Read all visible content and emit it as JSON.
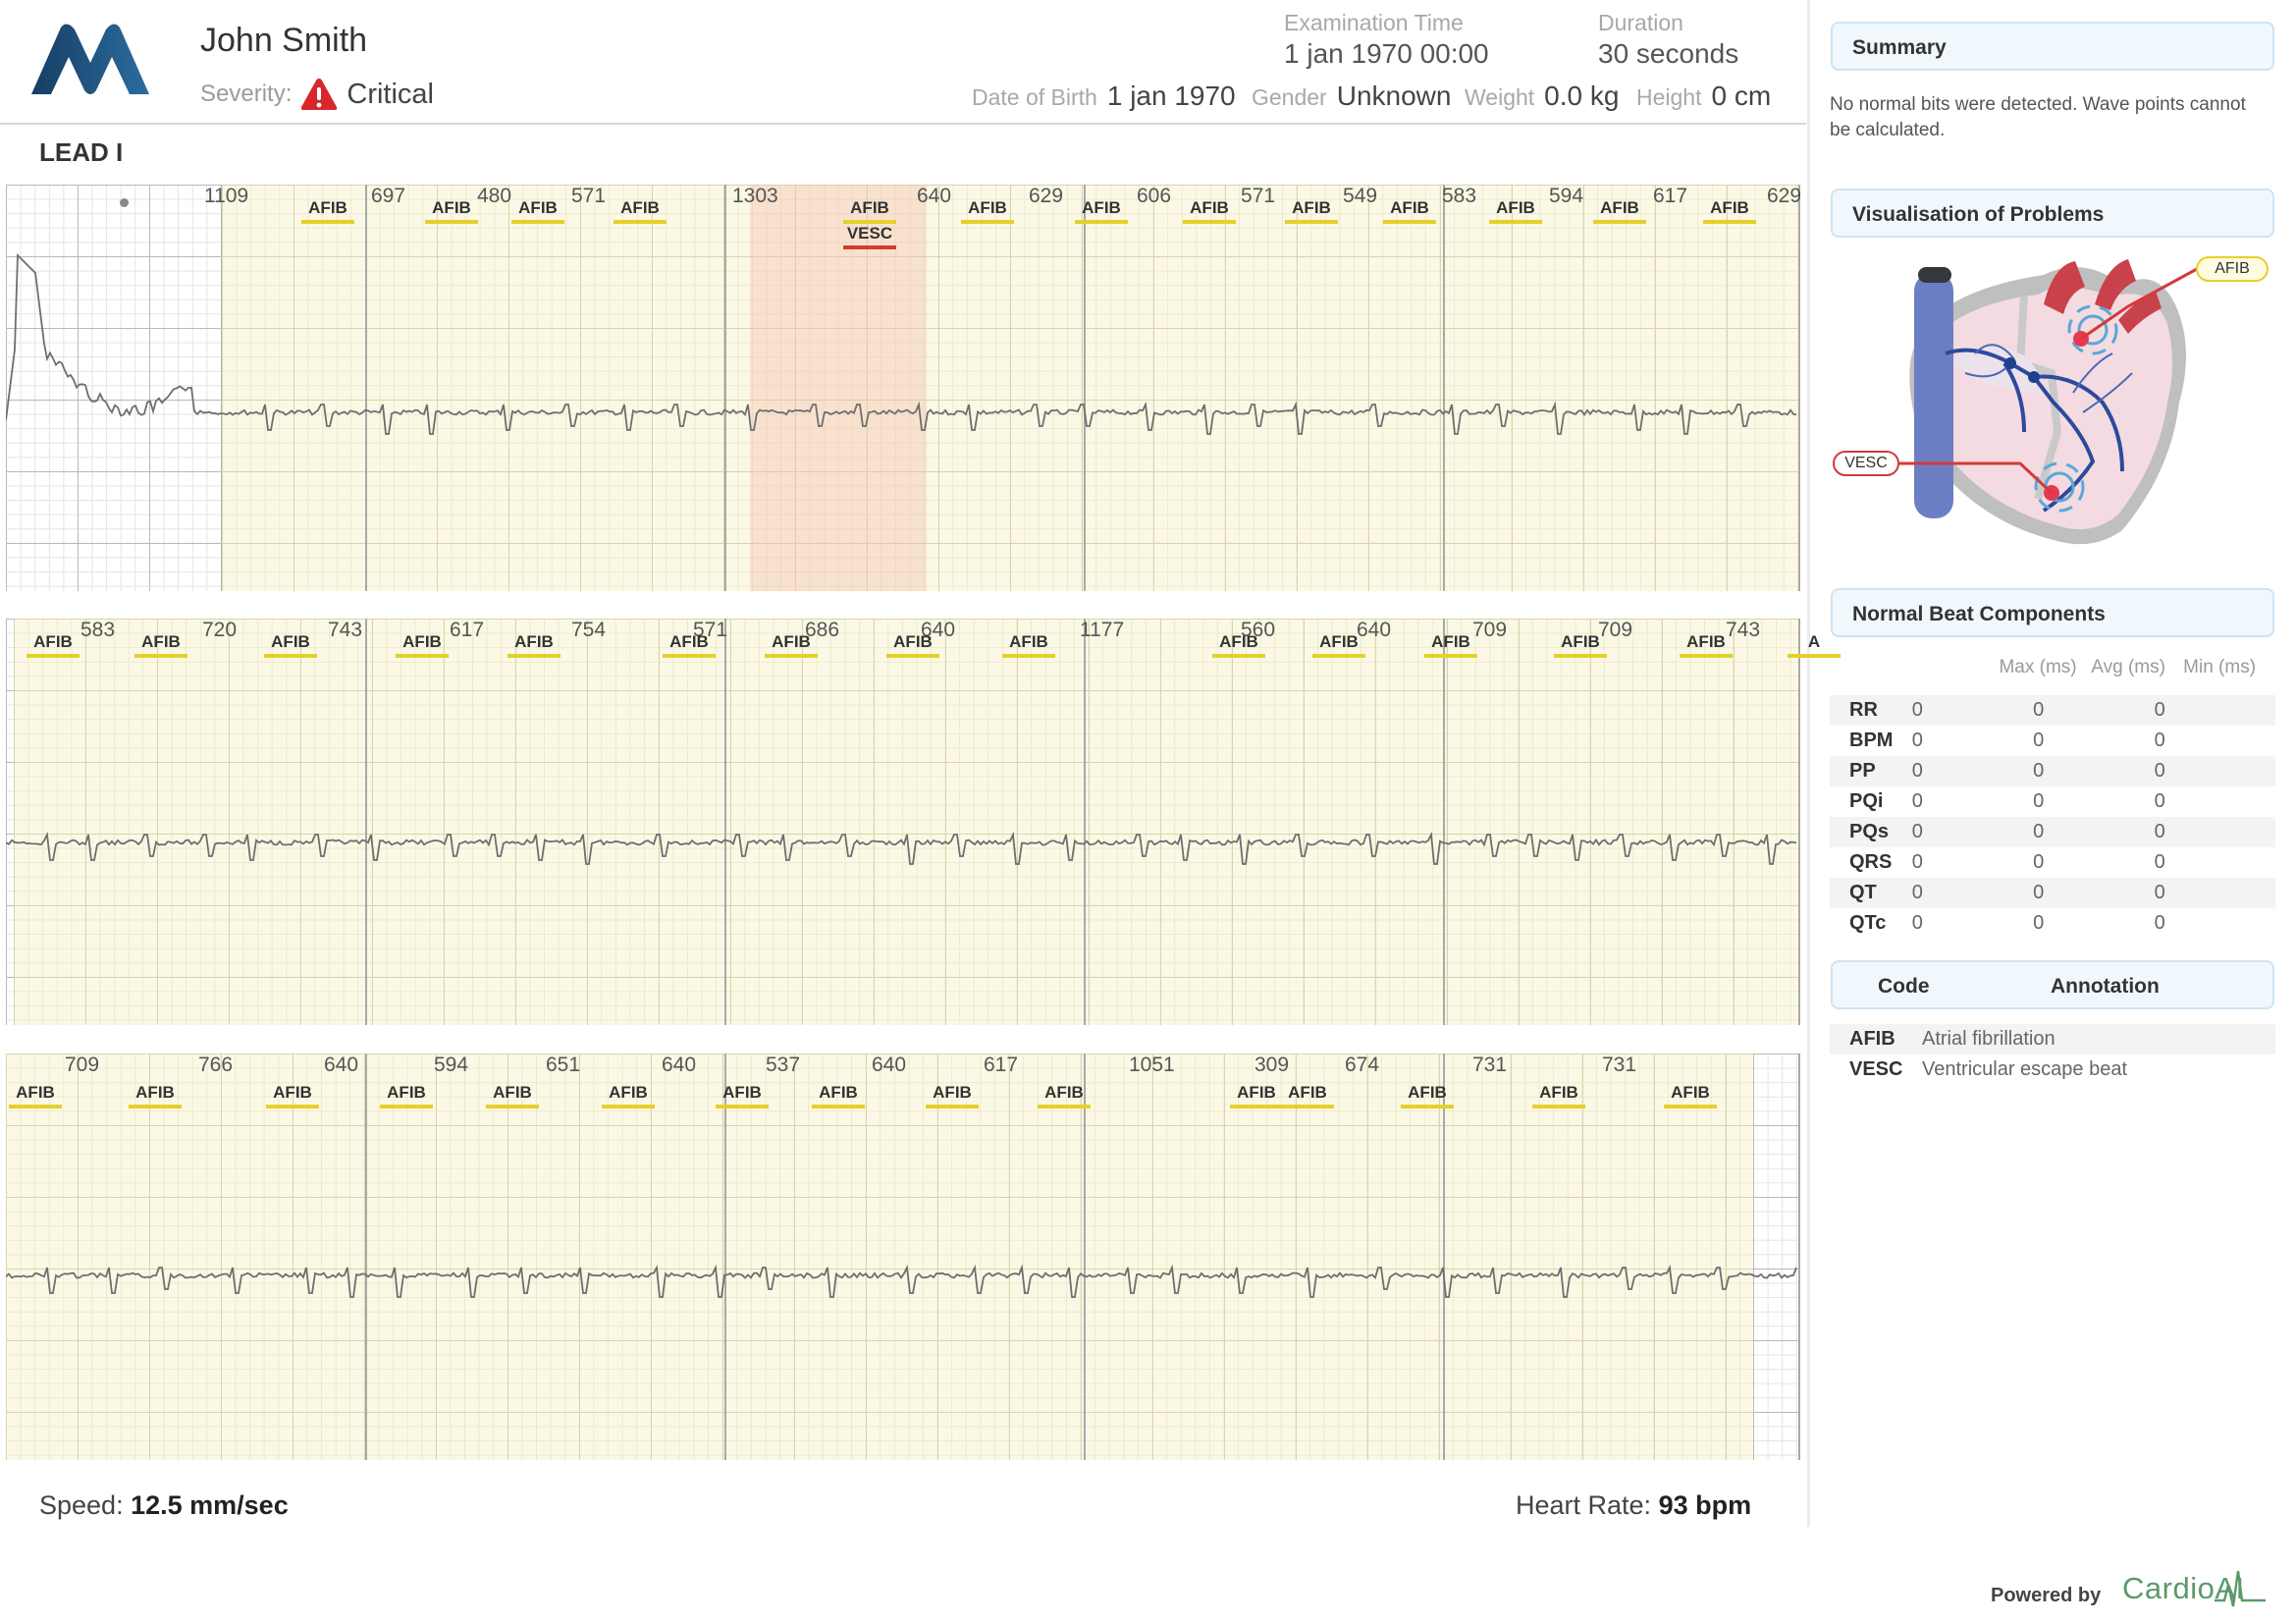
{
  "patient": {
    "name": "John Smith",
    "severity_label": "Severity:",
    "severity_value": "Critical",
    "exam_time_label": "Examination Time",
    "exam_time_value": "1 jan 1970 00:00",
    "duration_label": "Duration",
    "duration_value": "30 seconds",
    "dob_label": "Date of Birth",
    "dob_value": "1 jan 1970",
    "gender_label": "Gender",
    "gender_value": "Unknown",
    "weight_label": "Weight",
    "weight_value": "0.0 kg",
    "height_label": "Height",
    "height_value": "0 cm"
  },
  "ecg": {
    "lead_label": "LEAD I",
    "strips": [
      {
        "rr": [
          "1109",
          "697",
          "480",
          "571",
          "1303",
          "640",
          "629",
          "606",
          "571",
          "549",
          "583",
          "594",
          "617",
          "629"
        ],
        "tags": [
          {
            "text": "AFIB",
            "color": "#e6cf2a"
          },
          {
            "text": "AFIB",
            "color": "#e6cf2a"
          },
          {
            "text": "AFIB",
            "color": "#e6cf2a"
          },
          {
            "text": "AFIB",
            "color": "#e6cf2a"
          },
          {
            "text": "AFIB",
            "color": "#e6cf2a"
          },
          {
            "text": "VESC",
            "color": "#d63b2b"
          },
          {
            "text": "AFIB",
            "color": "#e6cf2a"
          },
          {
            "text": "AFIB",
            "color": "#e6cf2a"
          },
          {
            "text": "AFIB",
            "color": "#e6cf2a"
          },
          {
            "text": "AFIB",
            "color": "#e6cf2a"
          },
          {
            "text": "AFIB",
            "color": "#e6cf2a"
          },
          {
            "text": "AFIB",
            "color": "#e6cf2a"
          },
          {
            "text": "AFIB",
            "color": "#e6cf2a"
          },
          {
            "text": "AFIB",
            "color": "#e6cf2a"
          }
        ]
      },
      {
        "rr": [
          "583",
          "720",
          "743",
          "617",
          "754",
          "571",
          "686",
          "640",
          "1177",
          "560",
          "640",
          "709",
          "709",
          "743"
        ],
        "tags": [
          {
            "text": "AFIB",
            "color": "#e6cf2a"
          },
          {
            "text": "AFIB",
            "color": "#e6cf2a"
          },
          {
            "text": "AFIB",
            "color": "#e6cf2a"
          },
          {
            "text": "AFIB",
            "color": "#e6cf2a"
          },
          {
            "text": "AFIB",
            "color": "#e6cf2a"
          },
          {
            "text": "AFIB",
            "color": "#e6cf2a"
          },
          {
            "text": "AFIB",
            "color": "#e6cf2a"
          },
          {
            "text": "AFIB",
            "color": "#e6cf2a"
          },
          {
            "text": "AFIB",
            "color": "#e6cf2a"
          },
          {
            "text": "AFIB",
            "color": "#e6cf2a"
          },
          {
            "text": "AFIB",
            "color": "#e6cf2a"
          },
          {
            "text": "AFIB",
            "color": "#e6cf2a"
          },
          {
            "text": "AFIB",
            "color": "#e6cf2a"
          },
          {
            "text": "AFIB",
            "color": "#e6cf2a"
          },
          {
            "text": "A",
            "color": "#e6cf2a"
          }
        ]
      },
      {
        "rr": [
          "709",
          "766",
          "640",
          "594",
          "651",
          "640",
          "537",
          "640",
          "617",
          "1051",
          "309",
          "674",
          "731",
          "731"
        ],
        "tags": [
          {
            "text": "AFIB",
            "color": "#e6cf2a"
          },
          {
            "text": "AFIB",
            "color": "#e6cf2a"
          },
          {
            "text": "AFIB",
            "color": "#e6cf2a"
          },
          {
            "text": "AFIB",
            "color": "#e6cf2a"
          },
          {
            "text": "AFIB",
            "color": "#e6cf2a"
          },
          {
            "text": "AFIB",
            "color": "#e6cf2a"
          },
          {
            "text": "AFIB",
            "color": "#e6cf2a"
          },
          {
            "text": "AFIB",
            "color": "#e6cf2a"
          },
          {
            "text": "AFIB",
            "color": "#e6cf2a"
          },
          {
            "text": "AFIB",
            "color": "#e6cf2a"
          },
          {
            "text": "AFIB",
            "color": "#e6cf2a"
          },
          {
            "text": "AFIB",
            "color": "#e6cf2a"
          },
          {
            "text": "AFIB",
            "color": "#e6cf2a"
          },
          {
            "text": "AFIB",
            "color": "#e6cf2a"
          },
          {
            "text": "AFIB",
            "color": "#e6cf2a"
          }
        ]
      }
    ]
  },
  "footer": {
    "speed_label": "Speed:",
    "speed_value": "12.5 mm/sec",
    "hr_label": "Heart Rate:",
    "hr_value": "93 bpm"
  },
  "panel": {
    "summary_title": "Summary",
    "summary_text": "No normal bits were detected. Wave points cannot be calculated.",
    "vis_title": "Visualisation of Problems",
    "vis_afib": "AFIB",
    "vis_vesc": "VESC",
    "components_title": "Normal Beat Components",
    "components_headers": [
      "Max (ms)",
      "Avg (ms)",
      "Min (ms)"
    ],
    "components": [
      {
        "name": "RR",
        "max": "0",
        "avg": "0",
        "min": "0"
      },
      {
        "name": "BPM",
        "max": "0",
        "avg": "0",
        "min": "0"
      },
      {
        "name": "PP",
        "max": "0",
        "avg": "0",
        "min": "0"
      },
      {
        "name": "PQi",
        "max": "0",
        "avg": "0",
        "min": "0"
      },
      {
        "name": "PQs",
        "max": "0",
        "avg": "0",
        "min": "0"
      },
      {
        "name": "QRS",
        "max": "0",
        "avg": "0",
        "min": "0"
      },
      {
        "name": "QT",
        "max": "0",
        "avg": "0",
        "min": "0"
      },
      {
        "name": "QTc",
        "max": "0",
        "avg": "0",
        "min": "0"
      }
    ],
    "code_header": "Code",
    "annotation_header": "Annotation",
    "codes": [
      {
        "code": "AFIB",
        "annotation": "Atrial fibrillation"
      },
      {
        "code": "VESC",
        "annotation": "Ventricular escape beat"
      }
    ],
    "powered_by": "Powered by",
    "brand": "CardioAI"
  },
  "colors": {
    "brand_blue": "#1f4f7c",
    "critical_red": "#d9262c",
    "afib_yellow": "#e6cf2a",
    "vesc_red": "#d63b2b",
    "brand_green": "#5a9a6a"
  }
}
